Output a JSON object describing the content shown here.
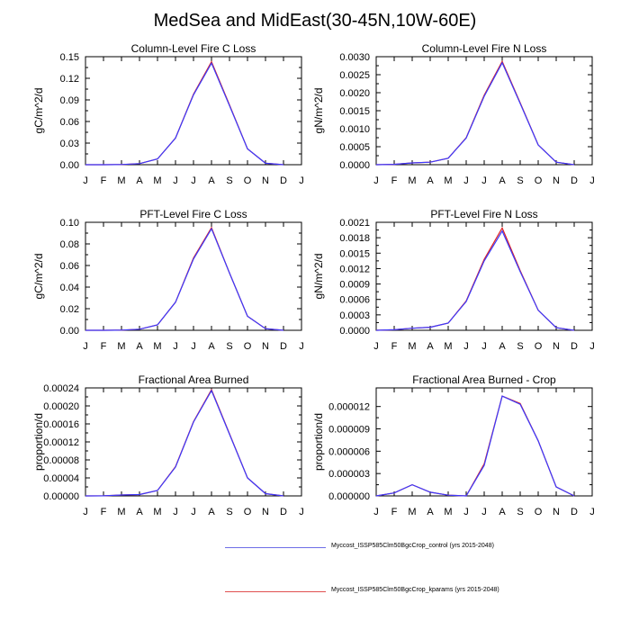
{
  "figure": {
    "title": "MedSea and MidEast(30-45N,10W-60E)",
    "months": [
      "J",
      "F",
      "M",
      "A",
      "M",
      "J",
      "J",
      "A",
      "S",
      "O",
      "N",
      "D",
      "J"
    ]
  },
  "legend": [
    {
      "label": "Myccost_ISSP585Clm50BgcCrop_control (yrs 2015-2048)",
      "color": "#6e6ee6"
    },
    {
      "label": "Myccost_ISSP585Clm50BgcCrop_kparams (yrs 2015-2048)",
      "color": "#e05050"
    }
  ],
  "colors": {
    "control": "#3a3aff",
    "kparams": "#e02020"
  },
  "chart_data": [
    {
      "type": "line",
      "title": "Column-Level Fire C Loss",
      "ylabel": "gC/m^2/d",
      "ylim": [
        0,
        0.15
      ],
      "yticks": [
        "0.00",
        "0.03",
        "0.06",
        "0.09",
        "0.12",
        "0.15"
      ],
      "x": [
        "J",
        "F",
        "M",
        "A",
        "M",
        "J",
        "J",
        "A",
        "S",
        "O",
        "N",
        "D"
      ],
      "series": [
        {
          "name": "Myccost_ISSP585Clm50BgcCrop_kparams (yrs 2015-2048)",
          "color": "#e02020",
          "values": [
            0,
            0,
            0.0003,
            0.0015,
            0.008,
            0.037,
            0.098,
            0.143,
            0.083,
            0.022,
            0.002,
            0
          ]
        },
        {
          "name": "Myccost_ISSP585Clm50BgcCrop_control (yrs 2015-2048)",
          "color": "#3a3aff",
          "values": [
            0,
            0,
            0.0003,
            0.0015,
            0.008,
            0.037,
            0.097,
            0.141,
            0.082,
            0.022,
            0.002,
            0
          ]
        }
      ]
    },
    {
      "type": "line",
      "title": "Column-Level Fire N Loss",
      "ylabel": "gN/m^2/d",
      "ylim": [
        0,
        0.003
      ],
      "yticks": [
        "0.0000",
        "0.0005",
        "0.0010",
        "0.0015",
        "0.0020",
        "0.0025",
        "0.0030"
      ],
      "x": [
        "J",
        "F",
        "M",
        "A",
        "M",
        "J",
        "J",
        "A",
        "S",
        "O",
        "N",
        "D"
      ],
      "series": [
        {
          "name": "Myccost_ISSP585Clm50BgcCrop_kparams (yrs 2015-2048)",
          "color": "#e02020",
          "values": [
            0,
            1e-05,
            5e-05,
            7e-05,
            0.00018,
            0.00075,
            0.00193,
            0.00287,
            0.00172,
            0.00055,
            7e-05,
            0
          ]
        },
        {
          "name": "Myccost_ISSP585Clm50BgcCrop_control (yrs 2015-2048)",
          "color": "#3a3aff",
          "values": [
            0,
            1e-05,
            5e-05,
            7e-05,
            0.00018,
            0.00074,
            0.0019,
            0.00283,
            0.0017,
            0.00055,
            7e-05,
            0
          ]
        }
      ]
    },
    {
      "type": "line",
      "title": "PFT-Level Fire C Loss",
      "ylabel": "gC/m^2/d",
      "ylim": [
        0,
        0.1
      ],
      "yticks": [
        "0.00",
        "0.02",
        "0.04",
        "0.06",
        "0.08",
        "0.10"
      ],
      "x": [
        "J",
        "F",
        "M",
        "A",
        "M",
        "J",
        "J",
        "A",
        "S",
        "O",
        "N",
        "D"
      ],
      "series": [
        {
          "name": "Myccost_ISSP585Clm50BgcCrop_kparams (yrs 2015-2048)",
          "color": "#e02020",
          "values": [
            0,
            0,
            0.0002,
            0.001,
            0.005,
            0.026,
            0.067,
            0.095,
            0.053,
            0.013,
            0.0015,
            0
          ]
        },
        {
          "name": "Myccost_ISSP585Clm50BgcCrop_control (yrs 2015-2048)",
          "color": "#3a3aff",
          "values": [
            0,
            0,
            0.0002,
            0.001,
            0.005,
            0.026,
            0.066,
            0.094,
            0.053,
            0.013,
            0.0015,
            0
          ]
        }
      ]
    },
    {
      "type": "line",
      "title": "PFT-Level Fire N Loss",
      "ylabel": "gN/m^2/d",
      "ylim": [
        0,
        0.0021
      ],
      "yticks": [
        "0.0000",
        "0.0003",
        "0.0006",
        "0.0009",
        "0.0012",
        "0.0015",
        "0.0018",
        "0.0021"
      ],
      "x": [
        "J",
        "F",
        "M",
        "A",
        "M",
        "J",
        "J",
        "A",
        "S",
        "O",
        "N",
        "D"
      ],
      "series": [
        {
          "name": "Myccost_ISSP585Clm50BgcCrop_kparams (yrs 2015-2048)",
          "color": "#e02020",
          "values": [
            0,
            1e-05,
            4e-05,
            6e-05,
            0.00014,
            0.00057,
            0.00138,
            0.00199,
            0.00116,
            0.00039,
            5e-05,
            0
          ]
        },
        {
          "name": "Myccost_ISSP585Clm50BgcCrop_control (yrs 2015-2048)",
          "color": "#3a3aff",
          "values": [
            0,
            1e-05,
            4e-05,
            6e-05,
            0.00014,
            0.00056,
            0.00135,
            0.00193,
            0.00114,
            0.00039,
            5e-05,
            0
          ]
        }
      ]
    },
    {
      "type": "line",
      "title": "Fractional Area Burned",
      "ylabel": "proportion/d",
      "ylim": [
        0,
        0.00024
      ],
      "yticks": [
        "0.00000",
        "0.00004",
        "0.00008",
        "0.00012",
        "0.00016",
        "0.00020",
        "0.00024"
      ],
      "x": [
        "J",
        "F",
        "M",
        "A",
        "M",
        "J",
        "J",
        "A",
        "S",
        "O",
        "N",
        "D"
      ],
      "series": [
        {
          "name": "Myccost_ISSP585Clm50BgcCrop_kparams (yrs 2015-2048)",
          "color": "#e02020",
          "values": [
            0,
            3e-07,
            2e-06,
            3e-06,
            1.2e-05,
            6.5e-05,
            0.000165,
            0.000236,
            0.000138,
            4e-05,
            5e-06,
            0
          ]
        },
        {
          "name": "Myccost_ISSP585Clm50BgcCrop_control (yrs 2015-2048)",
          "color": "#3a3aff",
          "values": [
            0,
            3e-07,
            2e-06,
            3e-06,
            1.2e-05,
            6.4e-05,
            0.000164,
            0.000234,
            0.000137,
            4e-05,
            5e-06,
            0
          ]
        }
      ]
    },
    {
      "type": "line",
      "title": "Fractional Area Burned - Crop",
      "ylabel": "proportion/d",
      "ylim": [
        0,
        1.45e-05
      ],
      "yticks": [
        "0.000000",
        "0.000003",
        "0.000006",
        "0.000009",
        "0.000012"
      ],
      "ytickvalues": [
        0,
        3e-06,
        6e-06,
        9e-06,
        1.2e-05
      ],
      "x": [
        "J",
        "F",
        "M",
        "A",
        "M",
        "J",
        "J",
        "A",
        "S",
        "O",
        "N",
        "D"
      ],
      "series": [
        {
          "name": "Myccost_ISSP585Clm50BgcCrop_kparams (yrs 2015-2048)",
          "color": "#e02020",
          "values": [
            0,
            4e-07,
            1.5e-06,
            5e-07,
            1e-07,
            0,
            4.3e-06,
            1.34e-05,
            1.24e-05,
            7.4e-06,
            1.2e-06,
            0
          ]
        },
        {
          "name": "Myccost_ISSP585Clm50BgcCrop_control (yrs 2015-2048)",
          "color": "#3a3aff",
          "values": [
            0,
            4e-07,
            1.5e-06,
            5e-07,
            1e-07,
            0,
            4.1e-06,
            1.34e-05,
            1.23e-05,
            7.4e-06,
            1.2e-06,
            0
          ]
        }
      ]
    }
  ]
}
